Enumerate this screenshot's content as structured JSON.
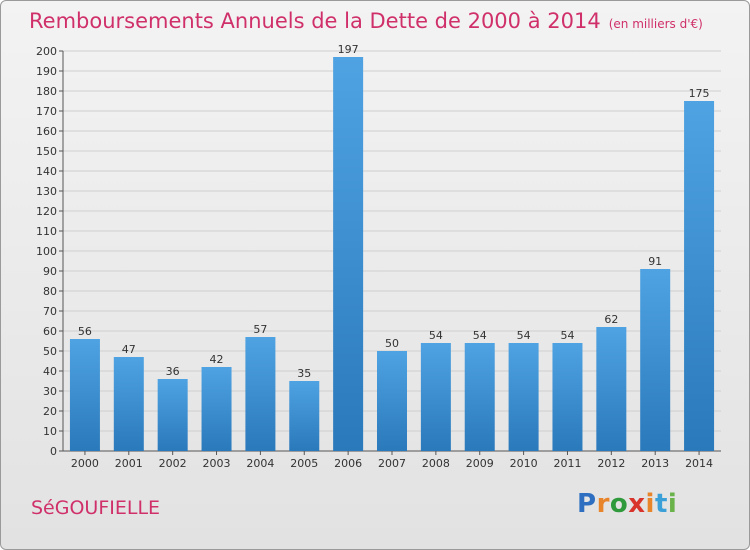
{
  "title": "Remboursements Annuels de la Dette de 2000 à 2014",
  "unit": "(en milliers d'€)",
  "commune": "SéGOUFIELLE",
  "logo": {
    "letters": [
      "P",
      "r",
      "o",
      "x",
      "i",
      "t",
      "i"
    ],
    "colors": [
      "#2e6fc1",
      "#e8842a",
      "#2e9a3c",
      "#d9342b",
      "#e8842a",
      "#3ba0d8",
      "#6ab24a"
    ]
  },
  "colors": {
    "bar": "#4fa3e2",
    "bar_dark": "#2a79bb",
    "title": "#d0306a",
    "grid": "#cfcfcf"
  },
  "chart_data": {
    "type": "bar",
    "title": "Remboursements Annuels de la Dette de 2000 à 2014",
    "ylabel": "en milliers d'€",
    "xlabel": "",
    "categories": [
      "2000",
      "2001",
      "2002",
      "2003",
      "2004",
      "2005",
      "2006",
      "2007",
      "2008",
      "2009",
      "2010",
      "2011",
      "2012",
      "2013",
      "2014"
    ],
    "values": [
      56,
      47,
      36,
      42,
      57,
      35,
      197,
      50,
      54,
      54,
      54,
      54,
      62,
      91,
      175
    ],
    "ylim": [
      0,
      200
    ],
    "ytick_step": 10,
    "grid": true
  }
}
